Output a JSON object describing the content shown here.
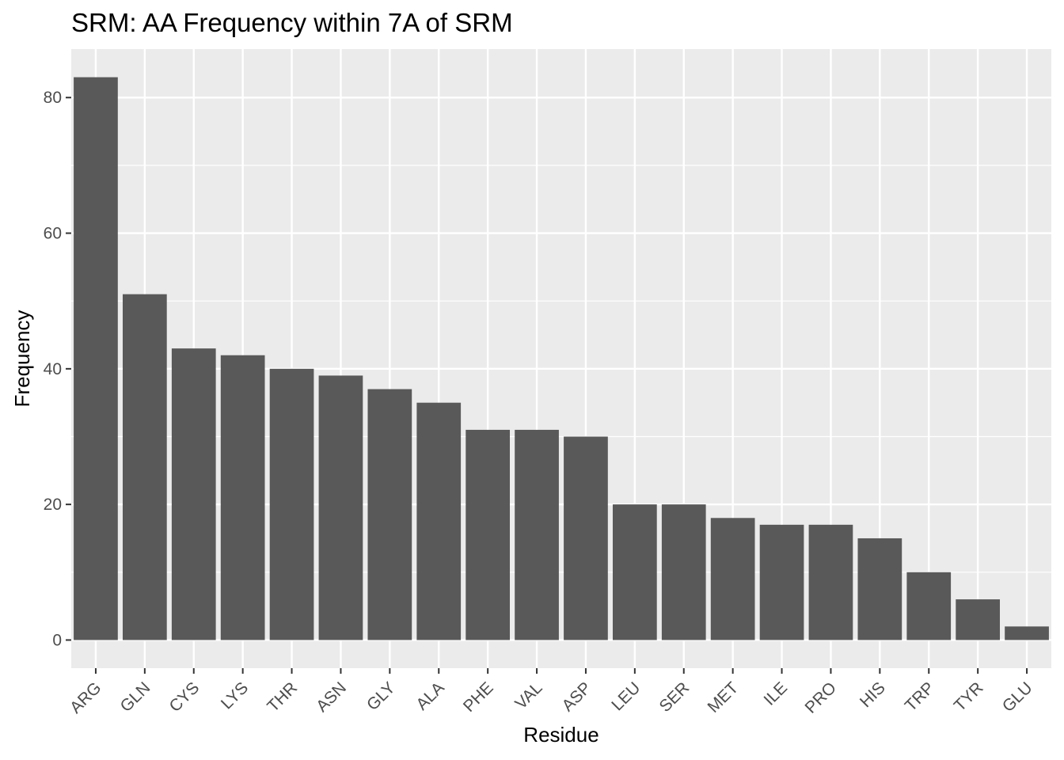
{
  "chart_data": {
    "type": "bar",
    "title": "SRM: AA Frequency within 7A of SRM",
    "xlabel": "Residue",
    "ylabel": "Frequency",
    "categories": [
      "ARG",
      "GLN",
      "CYS",
      "LYS",
      "THR",
      "ASN",
      "GLY",
      "ALA",
      "PHE",
      "VAL",
      "ASP",
      "LEU",
      "SER",
      "MET",
      "ILE",
      "PRO",
      "HIS",
      "TRP",
      "TYR",
      "GLU"
    ],
    "values": [
      83,
      51,
      43,
      42,
      40,
      39,
      37,
      35,
      31,
      31,
      30,
      20,
      20,
      18,
      17,
      17,
      15,
      10,
      6,
      2
    ],
    "yticks": [
      0,
      20,
      40,
      60,
      80
    ],
    "ylim": [
      -4.15,
      87.15
    ],
    "grid": true,
    "colors": {
      "panel_background": "#ebebeb",
      "grid_major": "#ffffff",
      "bar_fill": "#595959",
      "tick_text": "#4d4d4d"
    }
  }
}
